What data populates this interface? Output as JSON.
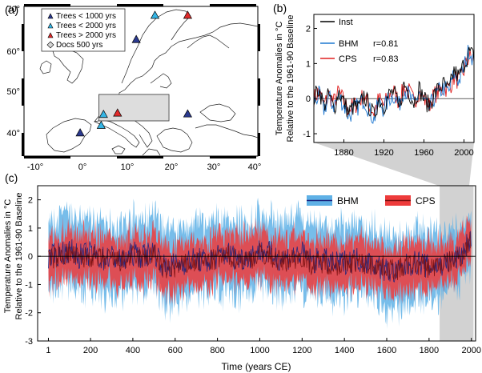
{
  "panels": {
    "a": {
      "label": "(a)",
      "legend": [
        {
          "label": "Trees < 1000 yrs",
          "color": "#2b3a8f"
        },
        {
          "label": "Trees < 2000 yrs",
          "color": "#35b6e6"
        },
        {
          "label": "Trees > 2000 yrs",
          "color": "#e02a2a"
        },
        {
          "label": "Docs 500 yrs",
          "color": "#d4d4d4"
        }
      ],
      "lon_ticks": [
        "-10°",
        "0°",
        "10°",
        "20°",
        "30°",
        "40°"
      ],
      "lat_ticks": [
        "70°",
        "60°",
        "50°",
        "40°"
      ],
      "lon_range": [
        -10,
        40
      ],
      "lat_range": [
        37,
        71
      ],
      "region_box": {
        "lon": [
          6,
          21
        ],
        "lat": [
          45,
          51
        ]
      },
      "sites": [
        {
          "type": "Trees < 1000 yrs",
          "lon": 14,
          "lat": 63.5
        },
        {
          "type": "Trees < 1000 yrs",
          "lon": 2,
          "lat": 42.3
        },
        {
          "type": "Trees < 1000 yrs",
          "lon": 25,
          "lat": 46.6
        },
        {
          "type": "Trees < 2000 yrs",
          "lon": 18,
          "lat": 69
        },
        {
          "type": "Trees < 2000 yrs",
          "lon": 7,
          "lat": 46.5
        },
        {
          "type": "Trees < 2000 yrs",
          "lon": 6.5,
          "lat": 44
        },
        {
          "type": "Trees > 2000 yrs",
          "lon": 25,
          "lat": 69
        },
        {
          "type": "Trees > 2000 yrs",
          "lon": 10,
          "lat": 46.8
        }
      ]
    },
    "b": {
      "label": "(b)",
      "ylabel_line1": "Temperature Anomalies in °C",
      "ylabel_line2": "Relative to the 1961-90 Baseline",
      "legend": [
        {
          "label": "Inst",
          "color": "#000000",
          "r": ""
        },
        {
          "label": "BHM",
          "color": "#1f78d1",
          "r": "r=0.81"
        },
        {
          "label": "CPS",
          "color": "#e02020",
          "r": "r=0.83"
        }
      ]
    },
    "c": {
      "label": "(c)",
      "ylabel_line1": "Temperature Anomalies in °C",
      "ylabel_line2": "Relative to the 1961-90 Baseline",
      "xlabel": "Time (years CE)",
      "legend": [
        {
          "label": "BHM",
          "band_color": "#5fb1e6",
          "line_color": "#1a237e"
        },
        {
          "label": "CPS",
          "band_color": "#ee3b3b",
          "line_color": "#7a1010"
        }
      ],
      "highlight_range": [
        1850,
        2010
      ]
    }
  },
  "chart_data": [
    {
      "panel": "b",
      "type": "line",
      "x_ticks": [
        "1880",
        "1920",
        "1960",
        "2000"
      ],
      "y_ticks": [
        "2",
        "1",
        "0",
        "-1"
      ],
      "xlim": [
        1850,
        2010
      ],
      "ylim": [
        -1.25,
        2.4
      ],
      "grid": false,
      "legend_position": "top-left",
      "series": [
        {
          "name": "Inst",
          "color": "#000000",
          "x": [
            1850,
            1855,
            1860,
            1865,
            1870,
            1875,
            1880,
            1885,
            1890,
            1895,
            1900,
            1905,
            1910,
            1915,
            1920,
            1925,
            1930,
            1935,
            1940,
            1945,
            1950,
            1955,
            1960,
            1965,
            1970,
            1975,
            1980,
            1985,
            1990,
            1995,
            2000,
            2005,
            2010
          ],
          "values": [
            0.0,
            0.3,
            -0.2,
            0.1,
            -0.3,
            0.2,
            -0.1,
            -0.4,
            -0.2,
            -0.3,
            0.1,
            -0.2,
            -0.5,
            0.0,
            -0.2,
            0.1,
            0.2,
            -0.3,
            0.4,
            0.2,
            -0.1,
            0.3,
            0.0,
            -0.2,
            0.1,
            0.3,
            0.4,
            0.2,
            0.8,
            0.6,
            1.0,
            1.3,
            1.2
          ]
        },
        {
          "name": "BHM",
          "color": "#1f78d1",
          "x": [
            1850,
            1855,
            1860,
            1865,
            1870,
            1875,
            1880,
            1885,
            1890,
            1895,
            1900,
            1905,
            1910,
            1915,
            1920,
            1925,
            1930,
            1935,
            1940,
            1945,
            1950,
            1955,
            1960,
            1965,
            1970,
            1975,
            1980,
            1985,
            1990,
            1995,
            2000,
            2005,
            2010
          ],
          "values": [
            -0.1,
            0.1,
            -0.3,
            0.0,
            -0.2,
            0.1,
            -0.2,
            -0.5,
            -0.3,
            -0.2,
            0.0,
            -0.3,
            -0.6,
            -0.1,
            -0.3,
            0.0,
            0.1,
            -0.2,
            0.3,
            0.1,
            -0.2,
            0.2,
            -0.1,
            -0.3,
            0.0,
            0.2,
            0.3,
            0.2,
            0.7,
            0.5,
            0.9,
            1.4,
            1.1
          ]
        },
        {
          "name": "CPS",
          "color": "#e02020",
          "x": [
            1850,
            1855,
            1860,
            1865,
            1870,
            1875,
            1880,
            1885,
            1890,
            1895,
            1900,
            1905,
            1910,
            1915,
            1920,
            1925,
            1930,
            1935,
            1940,
            1945,
            1950,
            1955,
            1960,
            1965,
            1970,
            1975,
            1980,
            1985,
            1990,
            1995,
            2000,
            2005,
            2010
          ],
          "values": [
            0.0,
            0.2,
            -0.2,
            0.1,
            -0.1,
            0.2,
            -0.1,
            -0.3,
            -0.2,
            -0.1,
            0.1,
            -0.2,
            -0.4,
            0.0,
            -0.2,
            0.1,
            0.2,
            -0.1,
            0.3,
            0.2,
            -0.1,
            0.2,
            0.0,
            -0.2,
            0.1,
            0.2,
            0.3,
            0.3,
            0.6,
            0.5,
            0.8,
            1.2,
            1.1
          ]
        }
      ]
    },
    {
      "panel": "c",
      "type": "area",
      "x_ticks": [
        "1",
        "200",
        "400",
        "600",
        "800",
        "1000",
        "1200",
        "1400",
        "1600",
        "1800",
        "2000"
      ],
      "y_ticks": [
        "2",
        "1",
        "0",
        "-1",
        "-2",
        "-3"
      ],
      "xlim": [
        -50,
        2020
      ],
      "ylim": [
        -3,
        2.5
      ],
      "grid": false,
      "legend_position": "top-right",
      "reference_line": 0,
      "series": [
        {
          "name": "BHM",
          "color": "#1a237e",
          "band_color": "#5fb1e6",
          "x": [
            1,
            50,
            100,
            150,
            200,
            250,
            300,
            350,
            400,
            450,
            500,
            550,
            600,
            650,
            700,
            750,
            800,
            850,
            900,
            950,
            1000,
            1050,
            1100,
            1150,
            1200,
            1250,
            1300,
            1350,
            1400,
            1450,
            1500,
            1550,
            1600,
            1650,
            1700,
            1750,
            1800,
            1850,
            1900,
            1950,
            2000
          ],
          "values": [
            -0.1,
            0.1,
            0.2,
            0.0,
            0.1,
            -0.1,
            0.0,
            -0.2,
            0.1,
            0.0,
            0.2,
            -0.4,
            -0.3,
            -0.2,
            -0.1,
            -0.2,
            0.0,
            0.1,
            -0.1,
            0.0,
            0.2,
            0.1,
            -0.1,
            0.0,
            0.1,
            -0.2,
            -0.1,
            -0.3,
            -0.2,
            -0.1,
            -0.2,
            -0.3,
            -0.5,
            -0.6,
            -0.3,
            -0.2,
            -0.4,
            -0.3,
            -0.2,
            0.0,
            0.7
          ],
          "lower": [
            -1.2,
            -1.0,
            -0.9,
            -1.1,
            -1.0,
            -1.2,
            -1.1,
            -1.3,
            -1.0,
            -1.1,
            -0.9,
            -1.6,
            -1.4,
            -1.3,
            -1.2,
            -1.3,
            -1.1,
            -1.0,
            -1.2,
            -1.1,
            -0.9,
            -1.0,
            -1.2,
            -1.1,
            -1.0,
            -1.3,
            -1.2,
            -1.4,
            -1.3,
            -1.2,
            -1.3,
            -1.4,
            -1.7,
            -1.8,
            -1.4,
            -1.3,
            -1.5,
            -1.2,
            -1.0,
            -0.8,
            -0.1
          ],
          "upper": [
            1.0,
            1.2,
            1.3,
            1.1,
            1.2,
            1.0,
            1.1,
            0.9,
            1.2,
            1.1,
            1.3,
            0.8,
            0.8,
            0.9,
            1.0,
            0.9,
            1.1,
            1.2,
            1.0,
            1.1,
            1.3,
            1.2,
            1.0,
            1.1,
            1.2,
            0.9,
            1.0,
            0.8,
            0.9,
            1.0,
            0.9,
            0.8,
            0.6,
            0.5,
            0.8,
            0.9,
            0.7,
            0.6,
            0.6,
            0.8,
            1.5
          ]
        },
        {
          "name": "CPS",
          "color": "#7a1010",
          "band_color": "#ee3b3b",
          "x": [
            1,
            50,
            100,
            150,
            200,
            250,
            300,
            350,
            400,
            450,
            500,
            550,
            600,
            650,
            700,
            750,
            800,
            850,
            900,
            950,
            1000,
            1050,
            1100,
            1150,
            1200,
            1250,
            1300,
            1350,
            1400,
            1450,
            1500,
            1550,
            1600,
            1650,
            1700,
            1750,
            1800,
            1850,
            1900,
            1950,
            2000
          ],
          "values": [
            -0.1,
            0.0,
            0.1,
            -0.1,
            0.0,
            -0.1,
            -0.1,
            -0.2,
            0.0,
            -0.1,
            0.1,
            -0.5,
            -0.4,
            -0.3,
            -0.2,
            -0.2,
            -0.1,
            0.0,
            -0.1,
            -0.1,
            0.1,
            0.0,
            -0.2,
            -0.1,
            0.0,
            -0.3,
            -0.2,
            -0.3,
            -0.3,
            -0.2,
            -0.3,
            -0.3,
            -0.4,
            -0.5,
            -0.3,
            -0.3,
            -0.4,
            -0.3,
            -0.2,
            0.0,
            0.6
          ],
          "lower": [
            -0.8,
            -0.7,
            -0.6,
            -0.8,
            -0.7,
            -0.8,
            -0.8,
            -0.9,
            -0.7,
            -0.8,
            -0.6,
            -1.3,
            -1.1,
            -1.0,
            -0.9,
            -0.9,
            -0.8,
            -0.7,
            -0.8,
            -0.8,
            -0.6,
            -0.7,
            -0.9,
            -0.8,
            -0.7,
            -1.0,
            -0.9,
            -1.0,
            -1.0,
            -0.9,
            -1.0,
            -1.0,
            -1.1,
            -1.2,
            -1.0,
            -1.0,
            -1.1,
            -0.9,
            -0.8,
            -0.6,
            0.0
          ],
          "upper": [
            0.6,
            0.7,
            0.8,
            0.6,
            0.7,
            0.6,
            0.6,
            0.5,
            0.7,
            0.6,
            0.8,
            0.3,
            0.3,
            0.4,
            0.5,
            0.5,
            0.6,
            0.7,
            0.6,
            0.6,
            0.8,
            0.7,
            0.5,
            0.6,
            0.7,
            0.4,
            0.5,
            0.4,
            0.4,
            0.5,
            0.4,
            0.4,
            0.3,
            0.2,
            0.4,
            0.4,
            0.3,
            0.3,
            0.4,
            0.6,
            1.2
          ]
        }
      ]
    }
  ]
}
